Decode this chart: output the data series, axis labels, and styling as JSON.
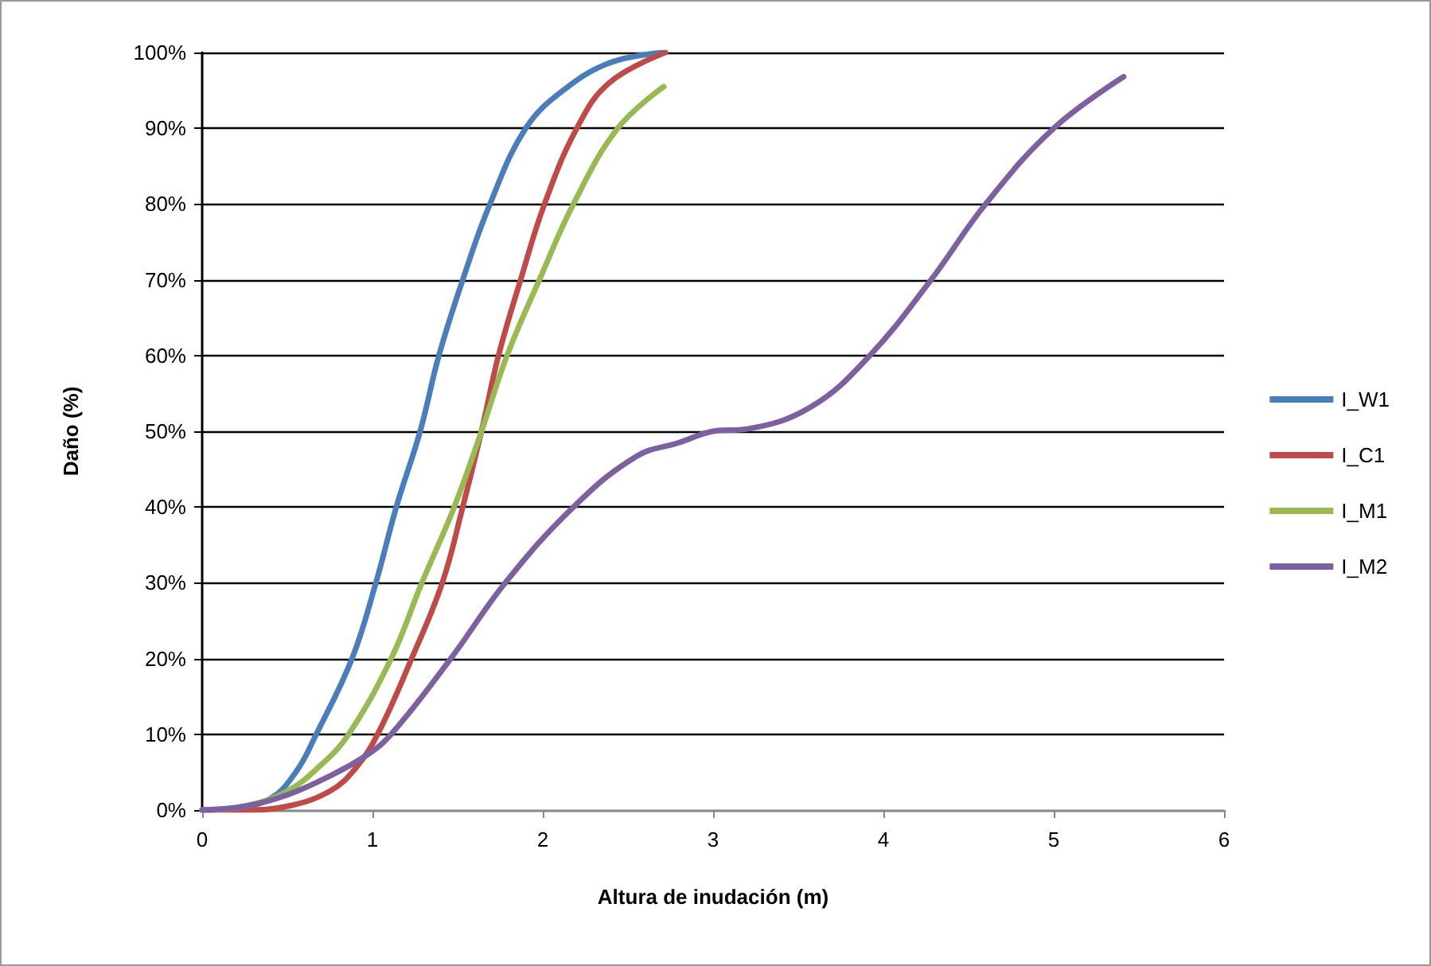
{
  "chart_data": {
    "type": "line",
    "xlabel": "Altura de inudación (m)",
    "ylabel": "Daño (%)",
    "xlim": [
      0,
      6
    ],
    "xticks": [
      0,
      1,
      2,
      3,
      4,
      5,
      6
    ],
    "ylim": [
      0,
      100
    ],
    "yticks": [
      {
        "value": 0,
        "label": "0%"
      },
      {
        "value": 10,
        "label": "10%"
      },
      {
        "value": 20,
        "label": "20%"
      },
      {
        "value": 30,
        "label": "30%"
      },
      {
        "value": 40,
        "label": "40%"
      },
      {
        "value": 50,
        "label": "50%"
      },
      {
        "value": 60,
        "label": "60%"
      },
      {
        "value": 70,
        "label": "70%"
      },
      {
        "value": 80,
        "label": "80%"
      },
      {
        "value": 90,
        "label": "90%"
      },
      {
        "value": 100,
        "label": "100%"
      }
    ],
    "grid": "y",
    "legend": "right",
    "marker": "none",
    "line_style": "solid",
    "series": [
      {
        "name": "I_W1",
        "color": "#4a7ebb",
        "x": [
          0,
          0.2,
          0.4,
          0.55,
          0.67,
          0.88,
          1.02,
          1.14,
          1.28,
          1.39,
          1.53,
          1.69,
          1.9,
          2.12,
          2.4,
          2.71
        ],
        "values": [
          0,
          0.3,
          1.5,
          5,
          10,
          20,
          30,
          40,
          50,
          60,
          70,
          80,
          90,
          95,
          98.7,
          100
        ]
      },
      {
        "name": "I_C1",
        "color": "#be4b48",
        "x": [
          0,
          0.25,
          0.5,
          0.75,
          0.9,
          1.03,
          1.23,
          1.41,
          1.53,
          1.64,
          1.74,
          1.87,
          2.01,
          2.2,
          2.39,
          2.72
        ],
        "values": [
          0,
          0,
          0.5,
          2.5,
          5.5,
          10,
          20,
          30,
          40,
          50,
          60,
          70,
          80,
          90,
          96,
          100
        ]
      },
      {
        "name": "I_M1",
        "color": "#98b954",
        "x": [
          0,
          0.25,
          0.5,
          0.7,
          0.86,
          1.11,
          1.29,
          1.48,
          1.64,
          1.79,
          1.98,
          2.18,
          2.44,
          2.71
        ],
        "values": [
          0,
          0.5,
          2.5,
          6,
          10,
          20,
          30,
          40,
          50,
          60,
          70,
          80,
          90,
          95.5
        ]
      },
      {
        "name": "I_M2",
        "color": "#7d60a0",
        "x": [
          0,
          0.25,
          0.5,
          0.75,
          0.97,
          1.11,
          1.46,
          1.78,
          2.18,
          2.55,
          2.8,
          3.0,
          3.2,
          3.58,
          3.92,
          4.28,
          4.6,
          5.0,
          5.41
        ],
        "values": [
          0,
          0.5,
          2,
          4.5,
          7.3,
          10,
          20,
          30,
          40,
          46.7,
          48.5,
          50,
          50.3,
          53.3,
          60,
          70,
          80,
          90,
          96.8
        ]
      }
    ]
  }
}
